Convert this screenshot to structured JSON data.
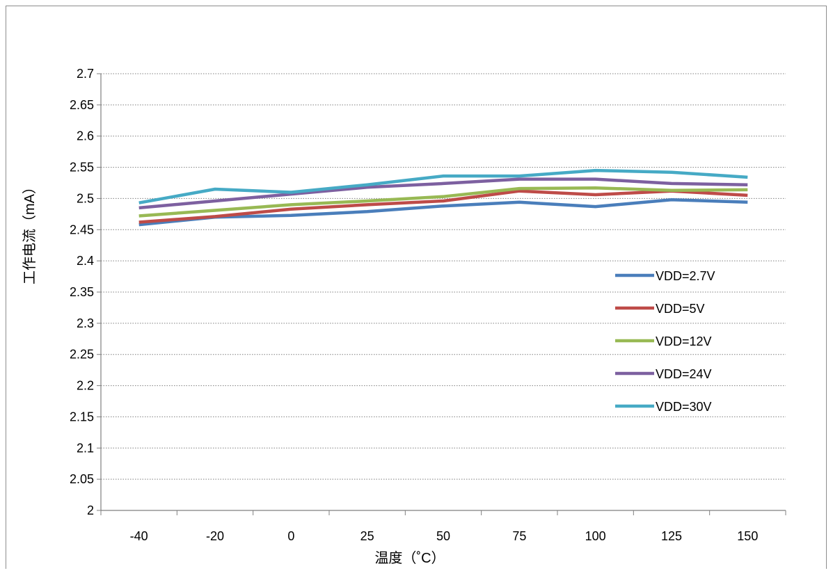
{
  "chart_data": {
    "type": "line",
    "xlabel": "温度（˚C）",
    "ylabel": "工作电流（mA）",
    "categories": [
      "-40",
      "-20",
      "0",
      "25",
      "50",
      "75",
      "100",
      "125",
      "150"
    ],
    "ylim": [
      2,
      2.7
    ],
    "yticks": [
      "2",
      "2.05",
      "2.1",
      "2.15",
      "2.2",
      "2.25",
      "2.3",
      "2.35",
      "2.4",
      "2.45",
      "2.5",
      "2.55",
      "2.6",
      "2.65",
      "2.7"
    ],
    "grid": "horizontal dotted",
    "legend_position": "right",
    "series": [
      {
        "name": "VDD=2.7V",
        "color": "#4a7ebb",
        "values": [
          2.458,
          2.47,
          2.473,
          2.479,
          2.488,
          2.494,
          2.487,
          2.498,
          2.494
        ]
      },
      {
        "name": "VDD=5V",
        "color": "#be4b48",
        "values": [
          2.462,
          2.471,
          2.483,
          2.49,
          2.496,
          2.512,
          2.506,
          2.512,
          2.505
        ]
      },
      {
        "name": "VDD=12V",
        "color": "#98b954",
        "values": [
          2.472,
          2.481,
          2.49,
          2.496,
          2.503,
          2.516,
          2.517,
          2.513,
          2.514
        ]
      },
      {
        "name": "VDD=24V",
        "color": "#7d60a0",
        "values": [
          2.485,
          2.496,
          2.507,
          2.518,
          2.524,
          2.531,
          2.531,
          2.524,
          2.522
        ]
      },
      {
        "name": "VDD=30V",
        "color": "#46aac5",
        "values": [
          2.493,
          2.515,
          2.51,
          2.522,
          2.536,
          2.536,
          2.545,
          2.542,
          2.534
        ]
      }
    ]
  }
}
